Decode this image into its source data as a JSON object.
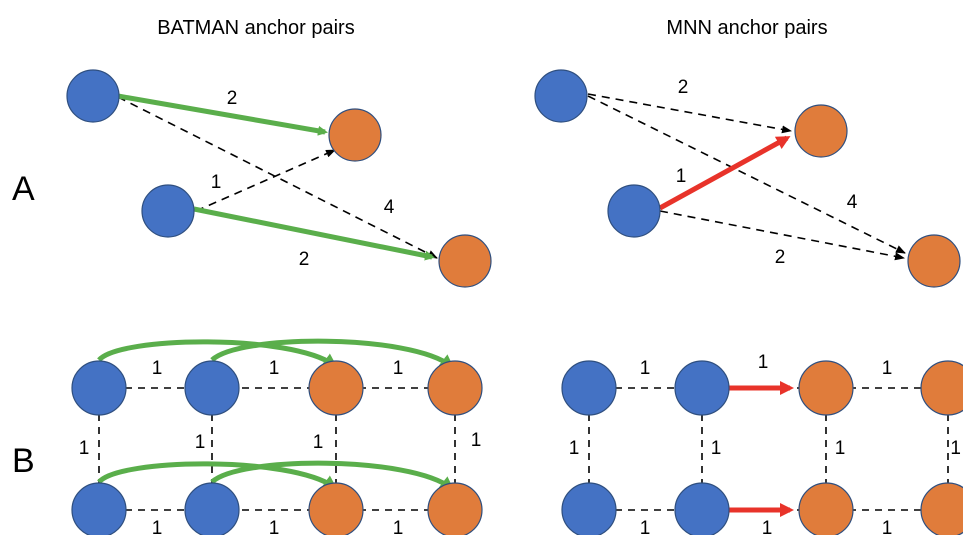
{
  "titles": {
    "batman": "BATMAN anchor pairs",
    "mnn": "MNN anchor pairs"
  },
  "panels": {
    "a": "A",
    "b": "B"
  },
  "colors": {
    "blue": "#4472c4",
    "orange": "#e07c3b",
    "node_stroke": "#2f4f7f",
    "green": "#5aae4b",
    "red": "#e8332a",
    "dashed": "#000000"
  },
  "labels": {
    "a_left_top": "2",
    "a_left_cross_up": "1",
    "a_left_cross_down": "4",
    "a_left_bottom": "2",
    "a_right_top": "2",
    "a_right_red": "1",
    "a_right_cross_down": "4",
    "a_right_bottom": "2",
    "b_left_h1": "1",
    "b_left_h2": "1",
    "b_left_h3": "1",
    "b_left_v1": "1",
    "b_left_v2": "1",
    "b_left_v3": "1",
    "b_left_v4": "1",
    "b_left_bh1": "1",
    "b_left_bh2": "1",
    "b_left_bh3": "1",
    "b_right_h1": "1",
    "b_right_h2": "1",
    "b_right_h3": "1",
    "b_right_v1": "1",
    "b_right_v2": "1",
    "b_right_v3": "1",
    "b_right_v4": "1",
    "b_right_bh1": "1",
    "b_right_bh2": "1",
    "b_right_bh3": "1"
  }
}
